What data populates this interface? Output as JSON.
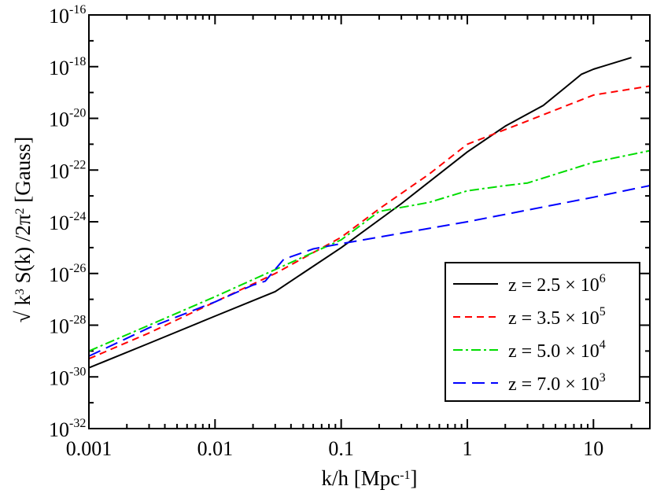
{
  "chart_data": {
    "type": "line",
    "title": "",
    "xlabel": {
      "base": "k/h [Mpc",
      "sup": "-1",
      "tail": "]"
    },
    "ylabel": {
      "parts": [
        "√ k",
        "3",
        " S(k) /2π",
        "2",
        " [Gauss]"
      ]
    },
    "xscale": "log",
    "yscale": "log",
    "xlim": [
      0.001,
      28
    ],
    "ylim": [
      1e-32,
      1e-16
    ],
    "x_ticks": [
      {
        "value": 0.001,
        "label": "0.001"
      },
      {
        "value": 0.01,
        "label": "0.01"
      },
      {
        "value": 0.1,
        "label": "0.1"
      },
      {
        "value": 1,
        "label": "1"
      },
      {
        "value": 10,
        "label": "10"
      }
    ],
    "y_ticks": [
      {
        "exp": -32,
        "base": "10",
        "sup": "-32"
      },
      {
        "exp": -30,
        "base": "10",
        "sup": "-30"
      },
      {
        "exp": -28,
        "base": "10",
        "sup": "-28"
      },
      {
        "exp": -26,
        "base": "10",
        "sup": "-26"
      },
      {
        "exp": -24,
        "base": "10",
        "sup": "-24"
      },
      {
        "exp": -22,
        "base": "10",
        "sup": "-22"
      },
      {
        "exp": -20,
        "base": "10",
        "sup": "-20"
      },
      {
        "exp": -18,
        "base": "10",
        "sup": "-18"
      },
      {
        "exp": -16,
        "base": "10",
        "sup": "-16"
      }
    ],
    "legend_position": "bottom-right",
    "series": [
      {
        "name": "z = 2.5 × 10^6",
        "label_main": "z = 2.5 × 10",
        "label_sup": "6",
        "color": "#000000",
        "dash": "solid",
        "x": [
          0.001,
          0.003,
          0.01,
          0.03,
          0.1,
          0.3,
          1,
          2,
          4,
          6,
          8,
          10,
          20
        ],
        "log10_y": [
          -29.65,
          -28.7,
          -27.65,
          -26.7,
          -25.0,
          -23.3,
          -21.3,
          -20.3,
          -19.5,
          -18.8,
          -18.3,
          -18.1,
          -17.65
        ]
      },
      {
        "name": "z = 3.5 × 10^5",
        "label_main": "z = 3.5 × 10",
        "label_sup": "5",
        "color": "#ff0000",
        "dash": "dashed",
        "x": [
          0.001,
          0.003,
          0.01,
          0.03,
          0.1,
          0.2,
          0.5,
          1,
          3,
          10,
          28
        ],
        "log10_y": [
          -29.3,
          -28.3,
          -27.1,
          -26.0,
          -24.6,
          -23.5,
          -22.15,
          -21.0,
          -20.1,
          -19.1,
          -18.75
        ]
      },
      {
        "name": "z = 5.0 × 10^4",
        "label_main": "z = 5.0 × 10",
        "label_sup": "4",
        "color": "#00dd00",
        "dash": "dashdot",
        "x": [
          0.001,
          0.003,
          0.01,
          0.03,
          0.1,
          0.2,
          0.5,
          1,
          2,
          3,
          10,
          28
        ],
        "log10_y": [
          -29.0,
          -28.0,
          -26.9,
          -25.85,
          -24.7,
          -23.6,
          -23.25,
          -22.8,
          -22.6,
          -22.5,
          -21.7,
          -21.25
        ]
      },
      {
        "name": "z = 7.0 × 10^3",
        "label_main": "z = 7.0 × 10",
        "label_sup": "3",
        "color": "#0000ff",
        "dash": "longdash",
        "x": [
          0.001,
          0.003,
          0.01,
          0.02,
          0.025,
          0.035,
          0.06,
          0.1,
          1,
          10,
          28
        ],
        "log10_y": [
          -29.2,
          -28.1,
          -27.1,
          -26.45,
          -26.3,
          -25.45,
          -25.05,
          -24.85,
          -24.0,
          -23.05,
          -22.6
        ]
      }
    ]
  }
}
